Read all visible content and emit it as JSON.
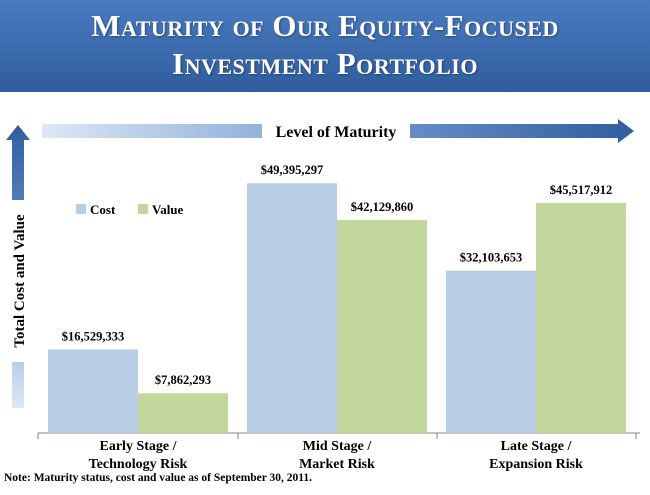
{
  "title": {
    "line1": "Maturity of Our Equity-Focused",
    "line2": "Investment Portfolio"
  },
  "note": "Note: Maturity status, cost and value as of September 30, 2011.",
  "arrows": {
    "x_label": "Level of Maturity",
    "y_label": "Total Cost and Value"
  },
  "colors": {
    "header": "#3b6cb3",
    "cost": "#b9cde6",
    "value": "#c3d79d",
    "arrow": "#2f5d9e"
  },
  "chart_data": {
    "type": "bar",
    "categories": [
      [
        "Early Stage /",
        "Technology Risk"
      ],
      [
        "Mid Stage /",
        "Market Risk"
      ],
      [
        "Late Stage /",
        "Expansion Risk"
      ]
    ],
    "series": [
      {
        "name": "Cost",
        "values": [
          16529333,
          49395297,
          32103653
        ],
        "labels": [
          "$16,529,333",
          "$49,395,297",
          "$32,103,653"
        ]
      },
      {
        "name": "Value",
        "values": [
          7862293,
          42129860,
          45517912
        ],
        "labels": [
          "$7,862,293",
          "$42,129,860",
          "$45,517,912"
        ]
      }
    ],
    "xlabel": "Level of Maturity",
    "ylabel": "Total Cost and Value",
    "ylim": [
      0,
      53000000
    ],
    "legend": "top-left",
    "grid": false
  }
}
